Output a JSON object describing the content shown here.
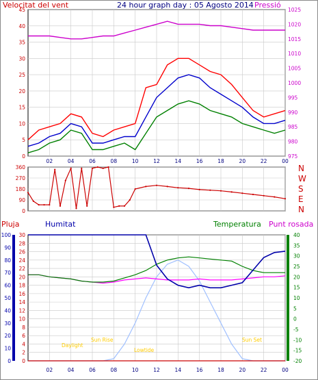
{
  "header": {
    "left_label": "Velocitat del vent",
    "title": "24 hour graph day : 05 Agosto 2014",
    "right_label": "Pressió"
  },
  "legend2": {
    "pluja": "Pluja",
    "humitat": "Humitat",
    "temperatura": "Temperatura",
    "punt_rosada": "Punt rosada"
  },
  "colors": {
    "wind_gust": "#ff0000",
    "wind_avg": "#0000cc",
    "wind_min": "#008000",
    "pressure": "#cc00cc",
    "direction": "#cc0000",
    "rain": "#cc0000",
    "humidity": "#0000aa",
    "temperature": "#008000",
    "dewpoint": "#ff00ff",
    "solar": "#a0c0ff",
    "sun_label": "#ffcc00",
    "grid": "#c8c8c8"
  },
  "chart_data": [
    {
      "type": "line",
      "name": "wind_and_pressure",
      "x_ticks": [
        "02",
        "04",
        "06",
        "08",
        "10",
        "12",
        "14",
        "16",
        "18",
        "20",
        "22",
        "00"
      ],
      "ylim_left": [
        0,
        45
      ],
      "yticks_left": [
        0,
        5,
        10,
        15,
        20,
        25,
        30,
        35,
        40,
        45
      ],
      "ylim_right": [
        975,
        1025
      ],
      "yticks_right": [
        975,
        980,
        985,
        990,
        995,
        1000,
        1005,
        1010,
        1015,
        1020,
        1025
      ],
      "x": [
        0,
        1,
        2,
        3,
        4,
        5,
        6,
        7,
        8,
        9,
        10,
        11,
        12,
        13,
        14,
        15,
        16,
        17,
        18,
        19,
        20,
        21,
        22,
        23,
        24
      ],
      "series": [
        {
          "key": "gust",
          "values": [
            5,
            8,
            9,
            10,
            13,
            12,
            7,
            6,
            8,
            9,
            10,
            21,
            22,
            28,
            30,
            30,
            28,
            26,
            25,
            22,
            18,
            14,
            12,
            13,
            14
          ]
        },
        {
          "key": "avg",
          "values": [
            3,
            4,
            6,
            7,
            10,
            9,
            4,
            4,
            5,
            6,
            6,
            12,
            18,
            21,
            24,
            25,
            24,
            21,
            19,
            17,
            15,
            12,
            10,
            10,
            11
          ]
        },
        {
          "key": "min",
          "values": [
            1,
            2,
            4,
            5,
            8,
            7,
            2,
            2,
            3,
            4,
            2,
            7,
            12,
            14,
            16,
            17,
            16,
            14,
            13,
            12,
            10,
            9,
            8,
            7,
            8
          ]
        },
        {
          "key": "pressure",
          "values": [
            1016,
            1016,
            1016,
            1015.5,
            1015,
            1015,
            1015.5,
            1016,
            1016,
            1017,
            1018,
            1019,
            1020,
            1021,
            1020,
            1020,
            1020,
            1019.5,
            1019.5,
            1019,
            1018.5,
            1018,
            1018,
            1018,
            1018
          ]
        }
      ]
    },
    {
      "type": "scatter",
      "name": "wind_direction",
      "x_ticks": [
        "02",
        "04",
        "06",
        "08",
        "10",
        "12",
        "14",
        "16",
        "18",
        "20",
        "22",
        "00"
      ],
      "ylim": [
        0,
        360
      ],
      "yticks": [
        0,
        90,
        180,
        270,
        360
      ],
      "direction_labels": [
        "N",
        "W",
        "S",
        "E",
        "N"
      ],
      "x": [
        0,
        0.5,
        1,
        1.5,
        2,
        2.5,
        3,
        3.5,
        4,
        4.5,
        5,
        5.5,
        6,
        6.5,
        7,
        7.5,
        8,
        8.5,
        9,
        9.5,
        10,
        11,
        12,
        13,
        14,
        15,
        16,
        17,
        18,
        19,
        20,
        21,
        22,
        23,
        24
      ],
      "values": [
        150,
        80,
        50,
        50,
        50,
        340,
        40,
        250,
        350,
        20,
        350,
        40,
        350,
        360,
        350,
        360,
        30,
        40,
        40,
        90,
        180,
        200,
        210,
        200,
        190,
        185,
        175,
        170,
        165,
        155,
        145,
        135,
        125,
        115,
        100
      ]
    },
    {
      "type": "line",
      "name": "humidity_temperature",
      "x_ticks": [
        "02",
        "04",
        "06",
        "08",
        "10",
        "12",
        "14",
        "16",
        "18",
        "20",
        "22",
        "00"
      ],
      "ylim_left": [
        0,
        30
      ],
      "yticks_left": [
        0,
        2,
        4,
        6,
        8,
        10,
        12,
        14,
        16,
        18,
        20,
        22,
        24,
        26,
        28,
        30
      ],
      "ylim_hum": [
        0,
        100
      ],
      "yticks_hum": [
        0,
        10,
        20,
        30,
        40,
        50,
        60,
        70,
        80,
        90,
        100
      ],
      "ylim_right": [
        -20,
        40
      ],
      "yticks_right": [
        -20,
        -15,
        -10,
        -5,
        0,
        5,
        10,
        15,
        20,
        25,
        30,
        35,
        40
      ],
      "sun_labels": {
        "daylight": "Daylight",
        "sunrise": "Sun Rise",
        "lowtide": "Lowtide",
        "sunset": "Sun Set"
      },
      "x": [
        0,
        1,
        2,
        3,
        4,
        5,
        6,
        7,
        8,
        9,
        10,
        11,
        12,
        13,
        14,
        15,
        16,
        17,
        18,
        19,
        20,
        21,
        22,
        23,
        24
      ],
      "series": [
        {
          "key": "humidity",
          "values": [
            100,
            100,
            100,
            100,
            100,
            100,
            100,
            100,
            100,
            100,
            100,
            100,
            76,
            65,
            60,
            58,
            60,
            58,
            58,
            60,
            62,
            72,
            82,
            86,
            87
          ]
        },
        {
          "key": "temperature",
          "values": [
            21,
            21,
            20,
            19.5,
            19,
            18,
            17.5,
            17.5,
            18,
            19.5,
            21,
            23,
            26,
            28,
            29,
            29.5,
            29,
            28.5,
            28,
            27.5,
            25,
            23,
            22,
            22,
            22
          ]
        },
        {
          "key": "dewpoint",
          "values": [
            21,
            21,
            20,
            19.5,
            19,
            18,
            17.5,
            17,
            17.5,
            18.5,
            19,
            19.5,
            19,
            18.5,
            18.5,
            18.5,
            19,
            18.5,
            18.5,
            18.5,
            19,
            19.5,
            20,
            20,
            20.5
          ]
        },
        {
          "key": "solar",
          "values": [
            -20,
            -20,
            -20,
            -20,
            -20,
            -20,
            -20,
            -20,
            -19,
            -12,
            -2,
            10,
            20,
            26,
            28,
            25,
            18,
            8,
            -2,
            -12,
            -19,
            -20,
            -20,
            -20,
            -20
          ]
        },
        {
          "key": "rain",
          "values": [
            0,
            0,
            0,
            0,
            0,
            0,
            0,
            0,
            0,
            0,
            0,
            0,
            0,
            0,
            0,
            0,
            0,
            0,
            0,
            0,
            0,
            0,
            0,
            0,
            0
          ]
        }
      ]
    }
  ]
}
